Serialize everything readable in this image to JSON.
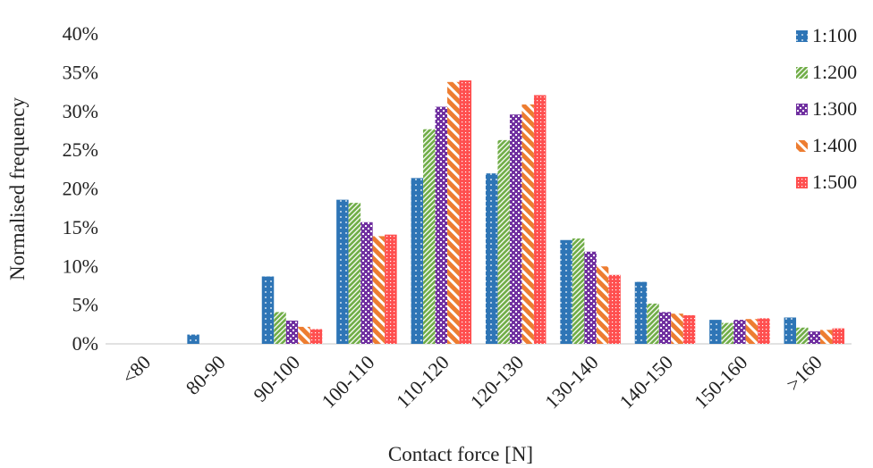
{
  "chart_data": {
    "type": "bar",
    "title": "",
    "xlabel": "Contact force [N]",
    "ylabel": "Normalised frequency",
    "ylim": [
      0,
      40
    ],
    "y_ticks": [
      "0%",
      "5%",
      "10%",
      "15%",
      "20%",
      "25%",
      "30%",
      "35%",
      "40%"
    ],
    "y_tick_values": [
      0,
      5,
      10,
      15,
      20,
      25,
      30,
      35,
      40
    ],
    "grid": false,
    "legend_position": "right",
    "categories": [
      "<80",
      "80-90",
      "90-100",
      "100-110",
      "110-120",
      "120-130",
      "130-140",
      "140-150",
      "150-160",
      ">160"
    ],
    "series": [
      {
        "name": "1:100",
        "color": "#2e75b6",
        "pattern": "dots",
        "values": [
          0,
          1.2,
          8.7,
          18.6,
          21.4,
          22.0,
          13.4,
          8.0,
          3.1,
          3.4
        ]
      },
      {
        "name": "1:200",
        "color": "#70ad47",
        "pattern": "diagonal-dense",
        "values": [
          0,
          0,
          4.1,
          18.2,
          27.7,
          26.3,
          13.6,
          5.2,
          2.7,
          2.1
        ]
      },
      {
        "name": "1:300",
        "color": "#7030a0",
        "pattern": "checker",
        "values": [
          0,
          0,
          3.0,
          15.7,
          30.6,
          29.6,
          11.9,
          4.1,
          3.1,
          1.6
        ]
      },
      {
        "name": "1:400",
        "color": "#ed7d31",
        "pattern": "wide-diagonal",
        "values": [
          0,
          0,
          2.2,
          13.9,
          33.8,
          30.9,
          10.0,
          3.9,
          3.2,
          1.8
        ]
      },
      {
        "name": "1:500",
        "color": "#ff4f4f",
        "pattern": "grid-dots",
        "values": [
          0,
          0,
          1.9,
          14.1,
          34.0,
          32.1,
          8.9,
          3.7,
          3.3,
          2.0
        ]
      }
    ]
  }
}
